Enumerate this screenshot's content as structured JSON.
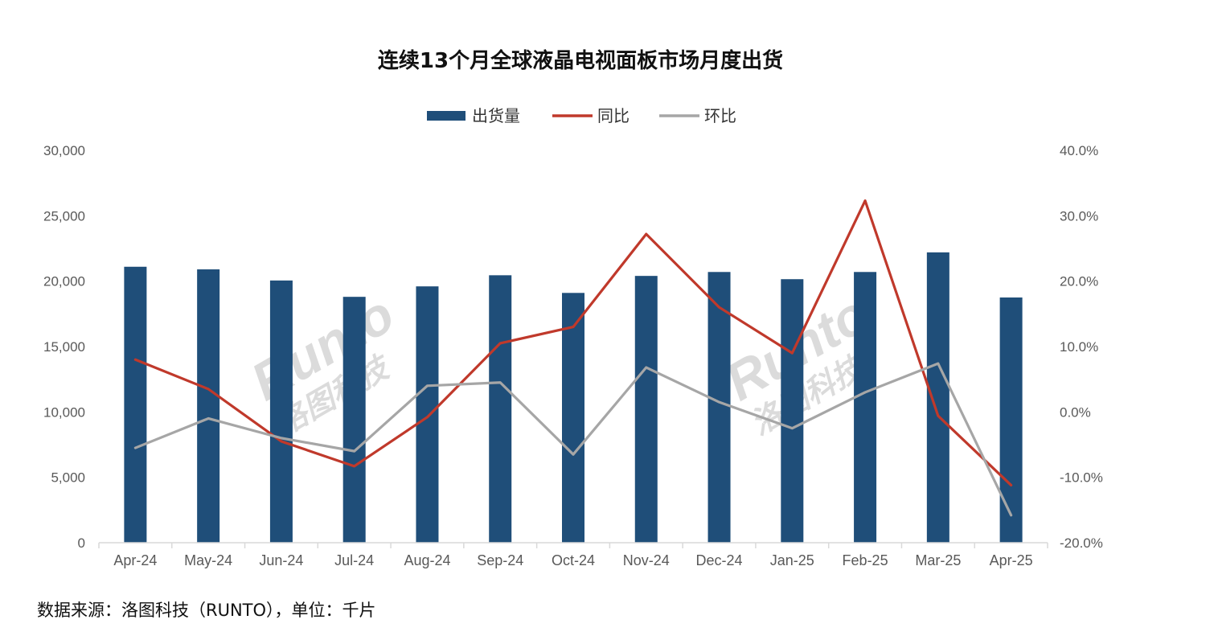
{
  "footer": {
    "source_text": "数据来源：洛图科技（RUNTO），单位：千片"
  },
  "watermark": {
    "brand": "Runto",
    "cn": "洛图科技"
  },
  "chart_data": {
    "type": "bar",
    "title": "连续13个月全球液晶电视面板市场月度出货",
    "legend_position": "top",
    "categories": [
      "Apr-24",
      "May-24",
      "Jun-24",
      "Jul-24",
      "Aug-24",
      "Sep-24",
      "Oct-24",
      "Nov-24",
      "Dec-24",
      "Jan-25",
      "Feb-25",
      "Mar-25",
      "Apr-25"
    ],
    "left_axis": {
      "ylim": [
        0,
        30000
      ],
      "ticks": [
        "0",
        "5,000",
        "10,000",
        "15,000",
        "20,000",
        "25,000",
        "30,000"
      ],
      "tick_values": [
        0,
        5000,
        10000,
        15000,
        20000,
        25000,
        30000
      ]
    },
    "right_axis": {
      "ylim": [
        -20,
        40
      ],
      "ticks": [
        "-20.0%",
        "-10.0%",
        "0.0%",
        "10.0%",
        "20.0%",
        "30.0%",
        "40.0%"
      ],
      "tick_values": [
        -20,
        -10,
        0,
        10,
        20,
        30,
        40
      ]
    },
    "grid": false,
    "series": [
      {
        "name": "出货量",
        "type": "bar",
        "axis": "left",
        "color": "#1f4e79",
        "values": [
          21100,
          20900,
          20050,
          18800,
          19600,
          20450,
          19100,
          20400,
          20700,
          20150,
          20700,
          22200,
          18750
        ]
      },
      {
        "name": "同比",
        "type": "line",
        "axis": "right",
        "color": "#c0392b",
        "values": [
          8.0,
          3.5,
          -4.5,
          -8.3,
          -0.8,
          10.5,
          13.0,
          27.2,
          16.0,
          9.0,
          32.3,
          -0.6,
          -11.2
        ]
      },
      {
        "name": "环比",
        "type": "line",
        "axis": "right",
        "color": "#a6a6a6",
        "values": [
          -5.5,
          -1.0,
          -4.0,
          -6.0,
          4.0,
          4.5,
          -6.5,
          6.8,
          1.5,
          -2.5,
          3.0,
          7.4,
          -15.8
        ]
      }
    ]
  }
}
